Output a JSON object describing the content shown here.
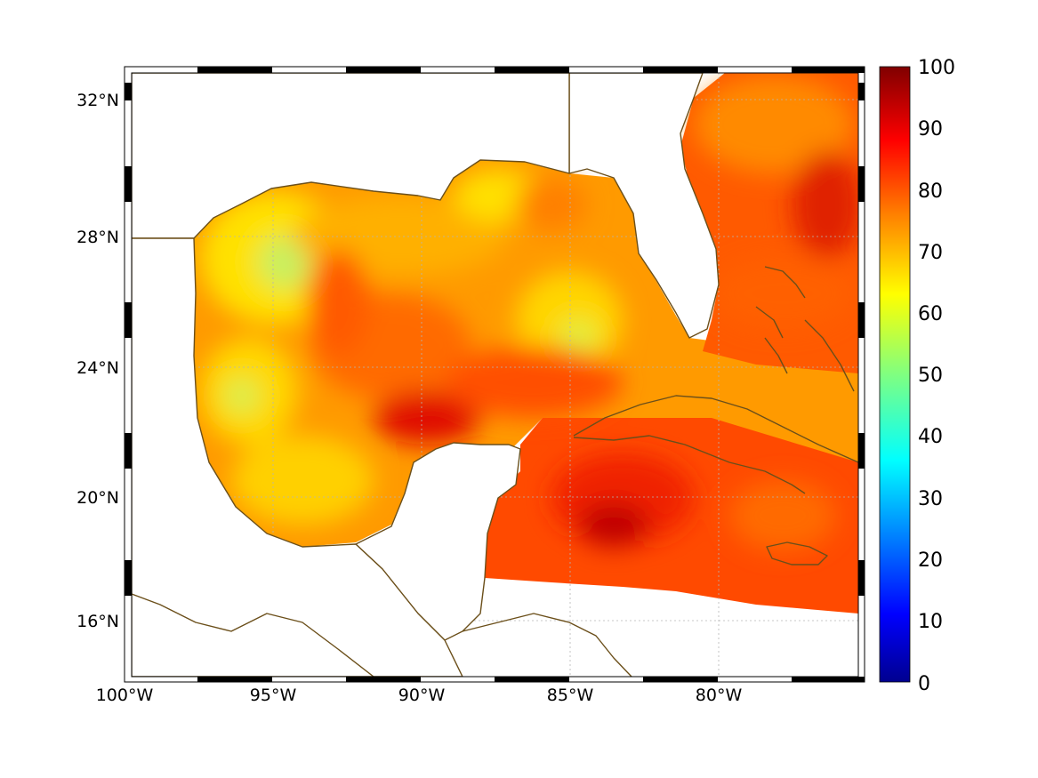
{
  "map": {
    "longitude_labels": [
      "100°W",
      "95°W",
      "90°W",
      "85°W",
      "80°W"
    ],
    "latitude_labels": [
      "32°N",
      "28°N",
      "24°N",
      "20°N",
      "16°N"
    ],
    "longitude_values": [
      -100,
      -95,
      -90,
      -85,
      -80
    ],
    "latitude_values": [
      32,
      28,
      24,
      20,
      16
    ],
    "extent": {
      "lon_min": -100,
      "lon_max": -75,
      "lat_min": 14.5,
      "lat_max": 33
    },
    "coastline_color": "#6b4f1a",
    "grid": true
  },
  "colorbar": {
    "tick_labels": [
      "100",
      "90",
      "80",
      "70",
      "60",
      "50",
      "40",
      "30",
      "20",
      "10",
      "0"
    ],
    "range": [
      0,
      100
    ],
    "colormap": "jet",
    "colors": [
      "#00008f",
      "#0000ff",
      "#0080ff",
      "#00ffff",
      "#80ff80",
      "#ffff00",
      "#ff8000",
      "#ff0000",
      "#800000"
    ]
  }
}
